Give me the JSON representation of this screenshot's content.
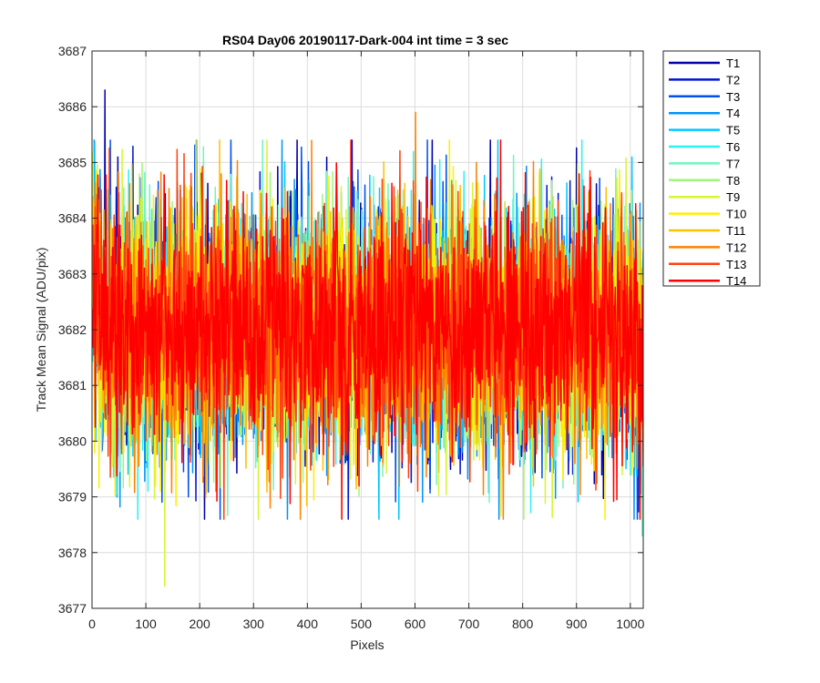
{
  "chart_data": {
    "type": "line",
    "title": "RS04 Day06 20190117-Dark-004 int time = 3 sec",
    "xlabel": "Pixels",
    "ylabel": "Track Mean Signal (ADU/pix)",
    "xlim": [
      0,
      1024
    ],
    "ylim": [
      3677,
      3687
    ],
    "xticks": [
      0,
      100,
      200,
      300,
      400,
      500,
      600,
      700,
      800,
      900,
      1000
    ],
    "yticks": [
      3677,
      3678,
      3679,
      3680,
      3681,
      3682,
      3683,
      3684,
      3685,
      3686,
      3687
    ],
    "grid": true,
    "legend_position": "outside-right-top",
    "series_summary": {
      "points_per_series": 1024,
      "x_start": 1,
      "x_step": 1,
      "typical_mean": 3682.0,
      "typical_range": [
        3679.5,
        3685.5
      ],
      "notable_extremes": [
        {
          "series": "T1",
          "x": 24,
          "y": 3686.3
        },
        {
          "series": "T9",
          "x": 135,
          "y": 3677.4
        },
        {
          "series": "T12",
          "x": 601,
          "y": 3685.9
        },
        {
          "series": "T7",
          "x": 1022,
          "y": 3678.3
        }
      ]
    },
    "series": [
      {
        "name": "T1",
        "color": "#0000AA"
      },
      {
        "name": "T2",
        "color": "#0015D5"
      },
      {
        "name": "T3",
        "color": "#0050F0"
      },
      {
        "name": "T4",
        "color": "#0095F8"
      },
      {
        "name": "T5",
        "color": "#00C8FF"
      },
      {
        "name": "T6",
        "color": "#2EF0F0"
      },
      {
        "name": "T7",
        "color": "#70F5C0"
      },
      {
        "name": "T8",
        "color": "#A2F57A"
      },
      {
        "name": "T9",
        "color": "#D8F533"
      },
      {
        "name": "T10",
        "color": "#FFEE00"
      },
      {
        "name": "T11",
        "color": "#FFC000"
      },
      {
        "name": "T12",
        "color": "#FF8000"
      },
      {
        "name": "T13",
        "color": "#FF4010"
      },
      {
        "name": "T14",
        "color": "#FF0000"
      }
    ]
  }
}
